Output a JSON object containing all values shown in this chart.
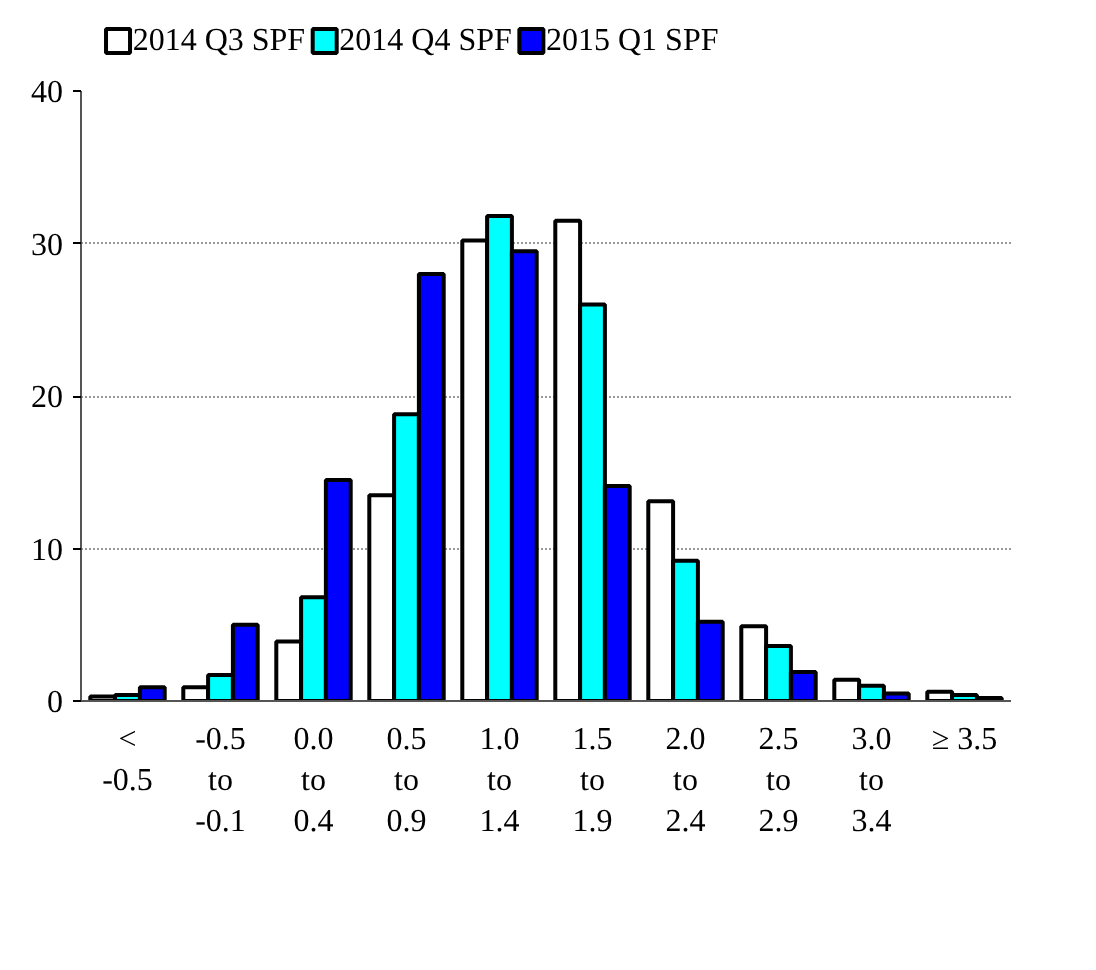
{
  "chart_data": {
    "type": "bar",
    "categories": [
      "<\n-0.5",
      "-0.5\nto\n-0.1",
      "0.0\nto\n0.4",
      "0.5\nto\n0.9",
      "1.0\nto\n1.4",
      "1.5\nto\n1.9",
      "2.0\nto\n2.4",
      "2.5\nto\n2.9",
      "3.0\nto\n3.4",
      "≥ 3.5"
    ],
    "series": [
      {
        "name": "2014 Q3 SPF",
        "color": "#ffffff",
        "values": [
          0.3,
          0.9,
          3.9,
          13.5,
          30.2,
          31.5,
          13.1,
          4.9,
          1.4,
          0.6
        ]
      },
      {
        "name": "2014 Q4 SPF",
        "color": "#00ffff",
        "values": [
          0.4,
          1.7,
          6.8,
          18.8,
          31.8,
          26.0,
          9.2,
          3.6,
          1.0,
          0.4
        ]
      },
      {
        "name": "2015 Q1 SPF",
        "color": "#0000ff",
        "values": [
          0.9,
          5.0,
          14.5,
          28.0,
          29.5,
          14.1,
          5.2,
          1.9,
          0.5,
          0.2
        ]
      }
    ],
    "ylim": [
      0,
      40
    ],
    "yticks": [
      0,
      10,
      20,
      30,
      40
    ],
    "grid": "y",
    "legend": "top"
  }
}
